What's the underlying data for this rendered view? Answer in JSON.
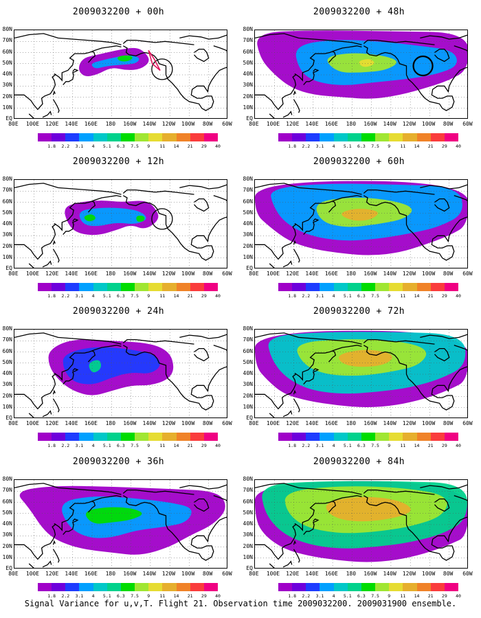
{
  "panels": [
    {
      "title": "2009032200 + 00h",
      "circle": true,
      "polygon": true,
      "intensity": 0
    },
    {
      "title": "2009032200 + 48h",
      "circle": true,
      "polygon": false,
      "intensity": 4
    },
    {
      "title": "2009032200 + 12h",
      "circle": true,
      "polygon": false,
      "intensity": 1
    },
    {
      "title": "2009032200 + 60h",
      "circle": false,
      "polygon": false,
      "intensity": 5
    },
    {
      "title": "2009032200 + 24h",
      "circle": false,
      "polygon": false,
      "intensity": 2
    },
    {
      "title": "2009032200 + 72h",
      "circle": false,
      "polygon": false,
      "intensity": 6
    },
    {
      "title": "2009032200 + 36h",
      "circle": false,
      "polygon": false,
      "intensity": 3
    },
    {
      "title": "2009032200 + 84h",
      "circle": false,
      "polygon": false,
      "intensity": 7
    }
  ],
  "lat_labels": [
    "80N",
    "70N",
    "60N",
    "50N",
    "40N",
    "30N",
    "20N",
    "10N",
    "EQ"
  ],
  "lon_labels": [
    "80E",
    "100E",
    "120E",
    "140E",
    "160E",
    "180",
    "160W",
    "140W",
    "120W",
    "100W",
    "80W",
    "60W"
  ],
  "colorbar_labels": [
    "1.8",
    "2.2",
    "3.1",
    "4",
    "5.1",
    "6.3",
    "7.5",
    "9",
    "11",
    "14",
    "21",
    "29",
    "40"
  ],
  "colorbar_colors": [
    "#a000c8",
    "#6e00dc",
    "#1e3cff",
    "#00a0ff",
    "#00c8c8",
    "#00d28c",
    "#00dc00",
    "#a0e632",
    "#e6dc32",
    "#e6af2d",
    "#f08228",
    "#fa3c3c",
    "#f00082"
  ],
  "caption": "Signal Variance for u,v,T. Flight 21. Observation time 2009032200. 2009031900 ensemble."
}
